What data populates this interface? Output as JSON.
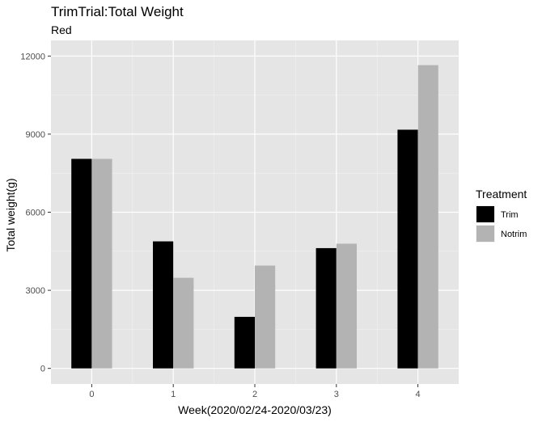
{
  "chart_data": {
    "type": "bar",
    "title": "TrimTrial:Total Weight",
    "subtitle": "Red",
    "xlabel": "Week(2020/02/24-2020/03/23)",
    "ylabel": "Total weight(g)",
    "categories": [
      "0",
      "1",
      "2",
      "3",
      "4"
    ],
    "x": [
      0,
      1,
      2,
      3,
      4
    ],
    "series": [
      {
        "name": "Trim",
        "color": "#000000",
        "values": [
          8050,
          4880,
          1980,
          4620,
          9170
        ]
      },
      {
        "name": "Notrim",
        "color": "#b3b3b3",
        "values": [
          8050,
          3480,
          3950,
          4790,
          11650
        ]
      }
    ],
    "ylim": [
      0,
      12000
    ],
    "yticks": [
      0,
      3000,
      6000,
      9000,
      12000
    ],
    "grid": true,
    "legend": {
      "title": "Treatment",
      "position": "right"
    }
  }
}
